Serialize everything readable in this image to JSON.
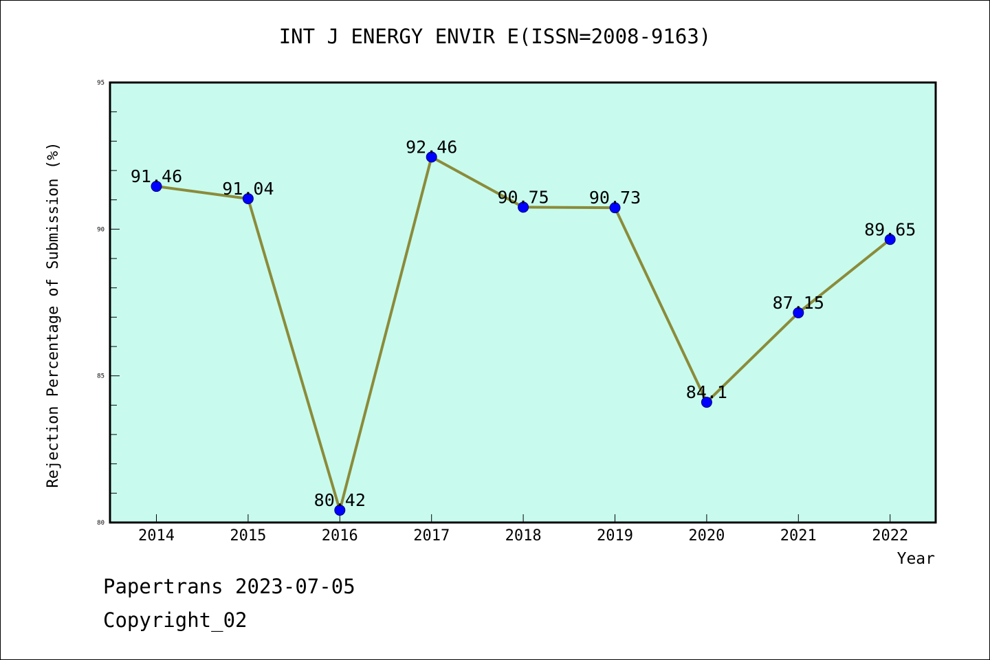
{
  "chart_data": {
    "type": "line",
    "title": "INT J ENERGY ENVIR E(ISSN=2008-9163)",
    "xlabel": "Year",
    "ylabel": "Rejection Percentage of Submission (%)",
    "categories": [
      "2014",
      "2015",
      "2016",
      "2017",
      "2018",
      "2019",
      "2020",
      "2021",
      "2022"
    ],
    "series": [
      {
        "values": [
          91.46,
          91.04,
          80.42,
          92.46,
          90.75,
          90.73,
          84.1,
          87.15,
          89.65
        ],
        "labels": [
          "91.46",
          "91.04",
          "80.42",
          "92.46",
          "90.75",
          "90.73",
          "84.1",
          "87.15",
          "89.65"
        ]
      }
    ],
    "ylim": [
      80,
      95
    ],
    "yticks": [
      80,
      85,
      90,
      95
    ],
    "ytick_labels": [
      "80",
      "85",
      "90",
      "95"
    ],
    "grid": false,
    "colors": {
      "plot_background": "#c8fbee",
      "line": "#8b8b3a",
      "marker": "#0000ff"
    }
  },
  "footer": {
    "line1": "Papertrans 2023-07-05",
    "line2": "Copyright_02"
  }
}
